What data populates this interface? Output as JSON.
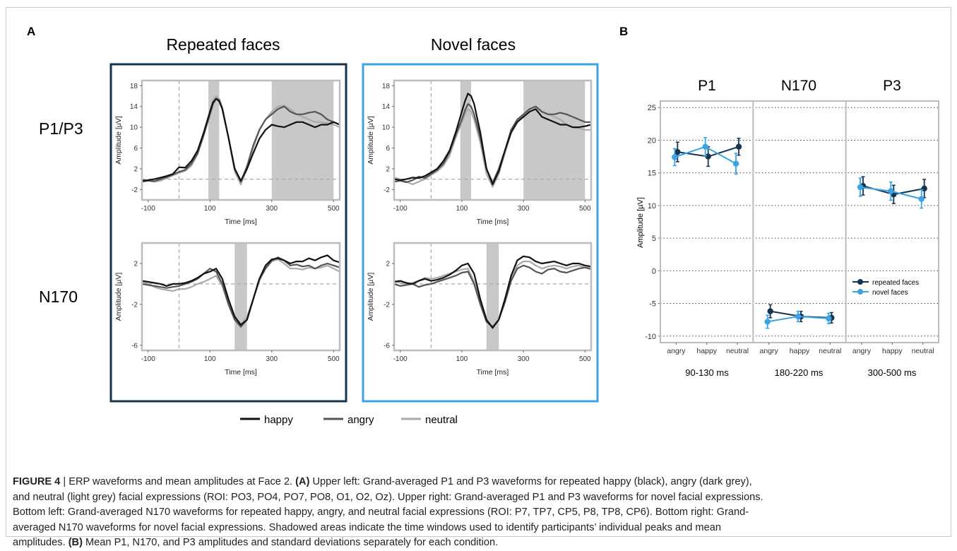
{
  "panel_labels": {
    "a": "A",
    "b": "B"
  },
  "panel_a": {
    "col_titles": [
      "Repeated faces",
      "Novel faces"
    ],
    "row_labels": [
      "P1/P3",
      "N170"
    ],
    "xlabel": "Time [ms]",
    "ylabel": "Amplitude [µV]",
    "legend": [
      {
        "name": "happy",
        "color": "#111111"
      },
      {
        "name": "angry",
        "color": "#555555"
      },
      {
        "name": "neutral",
        "color": "#aaaaaa"
      }
    ],
    "frame_colors": {
      "repeated": "#17344f",
      "novel": "#3aa3e3"
    }
  },
  "panel_b": {
    "titles": [
      "P1",
      "N170",
      "P3"
    ],
    "windows": [
      "90-130 ms",
      "180-220 ms",
      "300-500 ms"
    ],
    "categories": [
      "angry",
      "happy",
      "neutral"
    ],
    "ylabel": "Amplitude [µV]",
    "legend": [
      {
        "name": "repeated faces",
        "color": "#17344f"
      },
      {
        "name": "novel faces",
        "color": "#3aa3e3"
      }
    ]
  },
  "caption": {
    "figure_label": "FIGURE 4",
    "separator": " | ",
    "line1": "ERP waveforms and mean amplitudes at Face 2. ",
    "ref_a": "(A)",
    "line1b": " Upper left: Grand-averaged P1 and P3 waveforms for repeated happy (black), angry (dark grey),",
    "line2": "and neutral (light grey) facial expressions (ROI: PO3, PO4, PO7, PO8, O1, O2, Oz). Upper right: Grand-averaged P1 and P3 waveforms for novel facial expressions.",
    "line3": "Bottom left: Grand-averaged N170 waveforms for repeated happy, angry, and neutral facial expressions (ROI: P7, TP7, CP5, P8, TP8, CP6). Bottom right: Grand-",
    "line4": "averaged N170 waveforms for novel facial expressions. Shadowed areas indicate the time windows used to identify participants’ individual peaks and mean",
    "line5a": "amplitudes. ",
    "ref_b": "(B)",
    "line5b": " Mean P1, N170, and P3 amplitudes and standard deviations separately for each condition."
  },
  "chart_data": [
    {
      "type": "line",
      "title": "Repeated faces",
      "panel": "P1/P3",
      "xlabel": "Time [ms]",
      "ylabel": "Amplitude [µV]",
      "xlim": [
        -120,
        520
      ],
      "ylim": [
        -4,
        19
      ],
      "xticks": [
        -100,
        100,
        300,
        500
      ],
      "yticks": [
        -2,
        2,
        6,
        10,
        14,
        18
      ],
      "shaded": [
        [
          95,
          130
        ],
        [
          300,
          500
        ]
      ],
      "x": [
        -120,
        -100,
        -80,
        -60,
        -40,
        -20,
        0,
        20,
        40,
        60,
        80,
        100,
        110,
        120,
        130,
        140,
        160,
        180,
        200,
        220,
        240,
        260,
        280,
        300,
        320,
        340,
        360,
        380,
        400,
        420,
        440,
        460,
        480,
        500,
        520
      ],
      "series": [
        {
          "name": "happy",
          "values": [
            -0.3,
            -0.2,
            0,
            0.3,
            0.6,
            1,
            2.3,
            2.2,
            3.5,
            5.5,
            9,
            13,
            14.8,
            15.5,
            15,
            13.5,
            8,
            2,
            -0.3,
            2,
            5,
            7.8,
            9.5,
            10.5,
            10.2,
            10,
            10.5,
            11,
            11,
            10.5,
            10,
            10.5,
            10.5,
            11,
            10.5
          ]
        },
        {
          "name": "angry",
          "values": [
            -0.5,
            -0.3,
            -0.4,
            0,
            0.4,
            0.9,
            1.4,
            1.8,
            3,
            5,
            8.5,
            12.5,
            14.5,
            15.5,
            15.2,
            13.5,
            8,
            2,
            -0.5,
            2.5,
            6.5,
            9.5,
            11.5,
            12.5,
            13.5,
            14,
            13,
            12.5,
            12.5,
            12.8,
            13,
            12.5,
            11.5,
            11,
            10.5
          ]
        },
        {
          "name": "neutral",
          "values": [
            0,
            -0.3,
            -0.5,
            -0.3,
            0.2,
            0.7,
            1.2,
            1.6,
            2.6,
            4.8,
            8.5,
            13,
            15.2,
            16,
            15.5,
            13.8,
            8,
            1.5,
            -1,
            2,
            6,
            9.5,
            11.5,
            13,
            14,
            14.2,
            13.5,
            12.5,
            12,
            11.5,
            11,
            11,
            10.8,
            10.5,
            10
          ]
        }
      ]
    },
    {
      "type": "line",
      "title": "Novel faces",
      "panel": "P1/P3",
      "xlabel": "Time [ms]",
      "ylabel": "Amplitude [µV]",
      "xlim": [
        -120,
        520
      ],
      "ylim": [
        -4,
        19
      ],
      "xticks": [
        -100,
        100,
        300,
        500
      ],
      "yticks": [
        -2,
        2,
        6,
        10,
        14,
        18
      ],
      "shaded": [
        [
          95,
          130
        ],
        [
          300,
          500
        ]
      ],
      "x": [
        -120,
        -100,
        -80,
        -60,
        -40,
        -20,
        0,
        20,
        40,
        60,
        80,
        100,
        110,
        120,
        130,
        140,
        160,
        180,
        200,
        220,
        240,
        260,
        280,
        300,
        320,
        340,
        360,
        380,
        400,
        420,
        440,
        460,
        480,
        500,
        520
      ],
      "series": [
        {
          "name": "happy",
          "values": [
            0,
            -0.2,
            0,
            0.3,
            0.2,
            0.6,
            1.3,
            2,
            3.5,
            5.5,
            9,
            13,
            15,
            16.5,
            16,
            14.5,
            9,
            2,
            -1,
            1.5,
            5.5,
            9,
            11,
            12,
            13,
            13.5,
            12,
            11.5,
            11,
            10.5,
            10.5,
            10,
            10,
            10.2,
            10.5
          ]
        },
        {
          "name": "angry",
          "values": [
            -0.5,
            -0.3,
            -0.6,
            -0.2,
            0.5,
            0.2,
            1,
            1.8,
            3,
            5.2,
            8.5,
            11.5,
            13.2,
            14.5,
            14,
            12.5,
            8,
            2,
            -0.7,
            2,
            5.5,
            9.5,
            11.5,
            12.5,
            13.5,
            14,
            13,
            12.5,
            12.5,
            12.8,
            12.5,
            12,
            11.5,
            11,
            11
          ]
        },
        {
          "name": "neutral",
          "values": [
            0.3,
            0,
            -0.5,
            -1,
            -0.5,
            0,
            0.8,
            1.5,
            2.6,
            4.5,
            8,
            11,
            12.5,
            13.5,
            13,
            11.5,
            7,
            1,
            -1.5,
            1,
            5,
            9,
            11,
            12.5,
            13.5,
            14,
            13,
            12.5,
            12,
            11.5,
            10.5,
            10,
            9.8,
            9.5,
            9.5
          ]
        }
      ]
    },
    {
      "type": "line",
      "title": "Repeated faces",
      "panel": "N170",
      "xlabel": "Time [ms]",
      "ylabel": "Amplitude [µV]",
      "xlim": [
        -120,
        520
      ],
      "ylim": [
        -6.5,
        4
      ],
      "xticks": [
        -100,
        100,
        300,
        500
      ],
      "yticks": [
        -6,
        -2,
        2
      ],
      "shaded": [
        [
          180,
          220
        ]
      ],
      "x": [
        -120,
        -100,
        -80,
        -60,
        -40,
        -20,
        0,
        20,
        40,
        60,
        80,
        100,
        120,
        140,
        160,
        180,
        200,
        220,
        240,
        260,
        280,
        300,
        320,
        340,
        360,
        380,
        400,
        420,
        440,
        460,
        480,
        500,
        520
      ],
      "series": [
        {
          "name": "happy",
          "values": [
            0.3,
            0.2,
            0.1,
            0,
            -0.2,
            0,
            0,
            0.1,
            0.3,
            0.6,
            1,
            1.2,
            1.5,
            0.5,
            -1.5,
            -3.2,
            -4,
            -3.5,
            -1.5,
            0.5,
            1.8,
            2.4,
            2.5,
            2.3,
            2,
            2.2,
            2.2,
            2.5,
            2.3,
            2.6,
            2.8,
            2.3,
            2.1
          ]
        },
        {
          "name": "angry",
          "values": [
            0,
            -0.1,
            -0.2,
            -0.3,
            -0.4,
            -0.3,
            -0.2,
            0,
            0.2,
            0.5,
            1,
            1.5,
            1.2,
            0,
            -2,
            -3.5,
            -4.2,
            -3.5,
            -1.5,
            0.5,
            1.5,
            2.3,
            2.6,
            2.3,
            1.8,
            1.9,
            1.7,
            1.8,
            1.5,
            1.8,
            2,
            1.8,
            1.6
          ]
        },
        {
          "name": "neutral",
          "values": [
            0.2,
            0,
            -0.3,
            -0.5,
            -0.6,
            -0.7,
            -0.5,
            -0.5,
            -0.3,
            0,
            0.2,
            0.5,
            0.8,
            -0.2,
            -2,
            -3.5,
            -4,
            -3.2,
            -1.5,
            0.3,
            1.5,
            2.2,
            2.4,
            2,
            1.5,
            1.5,
            1.4,
            1.6,
            1.5,
            1.6,
            1.8,
            1.5,
            1.2
          ]
        }
      ]
    },
    {
      "type": "line",
      "title": "Novel faces",
      "panel": "N170",
      "xlabel": "Time [ms]",
      "ylabel": "Amplitude [µV]",
      "xlim": [
        -120,
        520
      ],
      "ylim": [
        -6.5,
        4
      ],
      "xticks": [
        -100,
        100,
        300,
        500
      ],
      "yticks": [
        -6,
        -2,
        2
      ],
      "shaded": [
        [
          180,
          220
        ]
      ],
      "x": [
        -120,
        -100,
        -80,
        -60,
        -40,
        -20,
        0,
        20,
        40,
        60,
        80,
        100,
        120,
        140,
        160,
        180,
        200,
        220,
        240,
        260,
        280,
        300,
        320,
        340,
        360,
        380,
        400,
        420,
        440,
        460,
        480,
        500,
        520
      ],
      "series": [
        {
          "name": "happy",
          "values": [
            0.2,
            0.3,
            0.1,
            0,
            0.3,
            0.5,
            0.3,
            0.4,
            0.6,
            0.9,
            1.3,
            1.8,
            2,
            1,
            -1.5,
            -3.5,
            -4.3,
            -3.5,
            -1.5,
            0.8,
            2.3,
            2.7,
            2.6,
            2.2,
            2,
            2.1,
            2.2,
            2,
            1.8,
            2,
            2,
            1.8,
            1.7
          ]
        },
        {
          "name": "angry",
          "values": [
            0,
            -0.2,
            -0.1,
            0,
            -0.3,
            -0.1,
            0,
            0.2,
            0.4,
            0.6,
            0.8,
            1.1,
            1.2,
            0,
            -2,
            -3.7,
            -4.2,
            -3.5,
            -1.8,
            0.3,
            1.5,
            1.8,
            1.6,
            1.2,
            1,
            1.4,
            1.5,
            1.2,
            1.1,
            1.3,
            1.5,
            1.6,
            1.5
          ]
        },
        {
          "name": "neutral",
          "values": [
            0.3,
            0.1,
            0,
            0.1,
            0.3,
            0.6,
            0.5,
            0.6,
            0.8,
            1,
            1.2,
            1.4,
            1.5,
            0.2,
            -1.8,
            -3.5,
            -4.2,
            -3.5,
            -1.5,
            0.5,
            1.8,
            2.2,
            2.2,
            1.8,
            1.5,
            1.7,
            1.8,
            1.7,
            1.5,
            1.7,
            1.8,
            1.6,
            1.4
          ]
        }
      ]
    },
    {
      "type": "line",
      "title": "P1 / N170 / P3",
      "ylabel": "Amplitude [µV]",
      "ylim": [
        -11,
        26
      ],
      "yticks": [
        -10,
        -5,
        0,
        5,
        10,
        15,
        20,
        25
      ],
      "groups": [
        "90-130 ms",
        "180-220 ms",
        "300-500 ms"
      ],
      "categories": [
        "angry",
        "happy",
        "neutral"
      ],
      "series": [
        {
          "name": "repeated faces",
          "values": [
            [
              18.2,
              17.5,
              19.0
            ],
            [
              -6.2,
              -7.0,
              -7.2
            ],
            [
              13.0,
              11.7,
              12.6
            ]
          ],
          "errors": [
            [
              1.5,
              1.5,
              1.3
            ],
            [
              1.0,
              0.8,
              0.8
            ],
            [
              1.4,
              1.4,
              1.4
            ]
          ]
        },
        {
          "name": "novel faces",
          "values": [
            [
              17.4,
              19.0,
              16.4
            ],
            [
              -7.8,
              -7.0,
              -7.3
            ],
            [
              12.8,
              12.2,
              11.0
            ]
          ],
          "errors": [
            [
              1.3,
              1.4,
              1.6
            ],
            [
              1.0,
              0.8,
              0.8
            ],
            [
              1.4,
              1.4,
              1.4
            ]
          ]
        }
      ]
    }
  ]
}
